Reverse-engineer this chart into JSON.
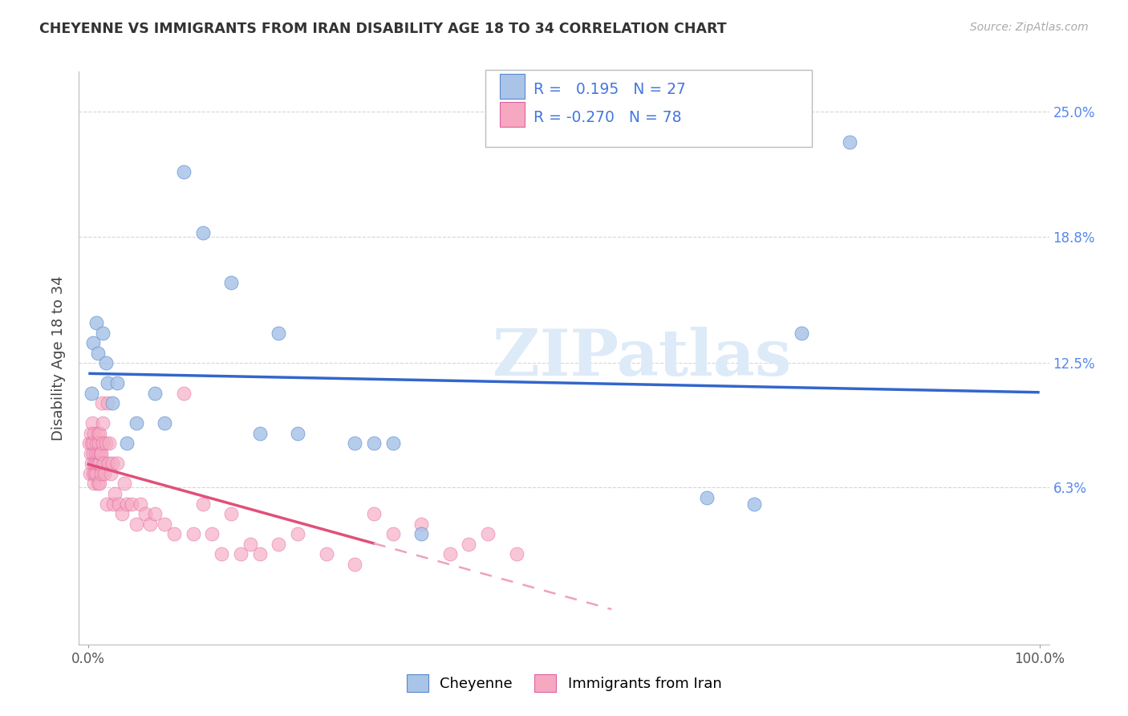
{
  "title": "CHEYENNE VS IMMIGRANTS FROM IRAN DISABILITY AGE 18 TO 34 CORRELATION CHART",
  "source": "Source: ZipAtlas.com",
  "ylabel": "Disability Age 18 to 34",
  "xlim": [
    -1,
    101
  ],
  "ylim": [
    -1.5,
    27
  ],
  "yticks": [
    6.3,
    12.5,
    18.8,
    25.0
  ],
  "ytick_labels": [
    "6.3%",
    "12.5%",
    "18.8%",
    "25.0%"
  ],
  "xtick_labels": [
    "0.0%",
    "100.0%"
  ],
  "cheyenne_color": "#aac4e8",
  "iran_color": "#f5a8c0",
  "cheyenne_edge_color": "#5588cc",
  "iran_edge_color": "#e060a0",
  "cheyenne_line_color": "#3366cc",
  "iran_line_color": "#e0507a",
  "iran_dash_color": "#f0a0c0",
  "background_color": "#ffffff",
  "watermark": "ZIPatlas",
  "legend_text_color": "#4477dd",
  "title_color": "#333333",
  "grid_color": "#cccccc",
  "cheyenne_x": [
    0.3,
    0.5,
    0.8,
    1.0,
    1.5,
    1.8,
    2.0,
    2.5,
    3.0,
    4.0,
    5.0,
    7.0,
    8.0,
    10.0,
    12.0,
    15.0,
    18.0,
    20.0,
    22.0,
    28.0,
    30.0,
    32.0,
    35.0,
    65.0,
    70.0,
    75.0,
    80.0
  ],
  "cheyenne_y": [
    11.0,
    13.5,
    14.5,
    13.0,
    14.0,
    12.5,
    11.5,
    10.5,
    11.5,
    8.5,
    9.5,
    11.0,
    9.5,
    22.0,
    19.0,
    16.5,
    9.0,
    14.0,
    9.0,
    8.5,
    8.5,
    8.5,
    4.0,
    5.8,
    5.5,
    14.0,
    23.5
  ],
  "iran_x": [
    0.1,
    0.15,
    0.2,
    0.25,
    0.3,
    0.35,
    0.4,
    0.45,
    0.5,
    0.5,
    0.55,
    0.6,
    0.6,
    0.65,
    0.7,
    0.75,
    0.8,
    0.85,
    0.9,
    0.95,
    1.0,
    1.0,
    1.05,
    1.1,
    1.15,
    1.2,
    1.2,
    1.25,
    1.3,
    1.35,
    1.4,
    1.5,
    1.5,
    1.6,
    1.7,
    1.8,
    1.9,
    2.0,
    2.1,
    2.2,
    2.3,
    2.5,
    2.6,
    2.8,
    3.0,
    3.2,
    3.5,
    3.8,
    4.0,
    4.5,
    5.0,
    5.5,
    6.0,
    6.5,
    7.0,
    8.0,
    9.0,
    10.0,
    11.0,
    12.0,
    13.0,
    14.0,
    15.0,
    16.0,
    17.0,
    18.0,
    20.0,
    22.0,
    25.0,
    28.0,
    30.0,
    32.0,
    35.0,
    38.0,
    40.0,
    42.0,
    45.0
  ],
  "iran_y": [
    8.5,
    7.0,
    8.0,
    9.0,
    8.5,
    7.5,
    9.5,
    8.0,
    8.5,
    7.0,
    7.5,
    9.0,
    6.5,
    7.0,
    8.0,
    7.5,
    8.5,
    7.0,
    7.5,
    8.0,
    9.0,
    6.5,
    7.5,
    8.5,
    6.5,
    7.5,
    9.0,
    8.0,
    8.0,
    7.0,
    10.5,
    8.5,
    9.5,
    7.5,
    7.0,
    8.5,
    5.5,
    10.5,
    7.5,
    8.5,
    7.0,
    7.5,
    5.5,
    6.0,
    7.5,
    5.5,
    5.0,
    6.5,
    5.5,
    5.5,
    4.5,
    5.5,
    5.0,
    4.5,
    5.0,
    4.5,
    4.0,
    11.0,
    4.0,
    5.5,
    4.0,
    3.0,
    5.0,
    3.0,
    3.5,
    3.0,
    3.5,
    4.0,
    3.0,
    2.5,
    5.0,
    4.0,
    4.5,
    3.0,
    3.5,
    4.0,
    3.0
  ]
}
